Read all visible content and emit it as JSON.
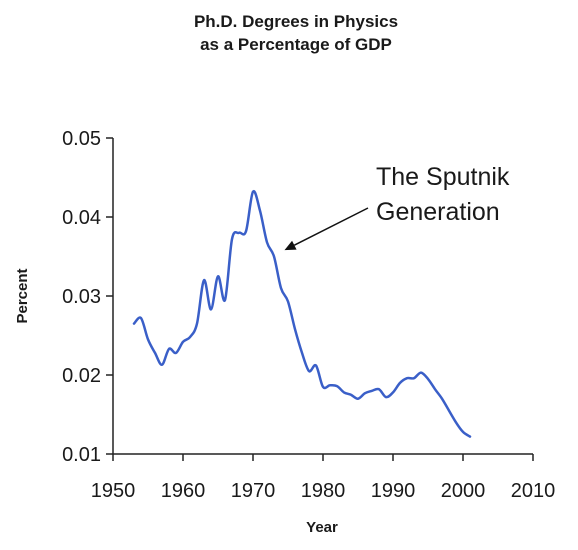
{
  "chart_data": {
    "type": "line",
    "title": [
      "Ph.D. Degrees in Physics",
      "as a Percentage of GDP"
    ],
    "xlabel": "Year",
    "ylabel": "Percent",
    "xlim": [
      1950,
      2010
    ],
    "ylim": [
      0.01,
      0.05
    ],
    "xticks": [
      1950,
      1960,
      1970,
      1980,
      1990,
      2000,
      2010
    ],
    "yticks": [
      0.01,
      0.02,
      0.03,
      0.04,
      0.05
    ],
    "ytick_labels": [
      "0.01",
      "0.02",
      "0.03",
      "0.04",
      "0.05"
    ],
    "grid": false,
    "line_color": "#3a5fc8",
    "series": [
      {
        "x": [
          1953,
          1954,
          1955,
          1956,
          1957,
          1958,
          1959,
          1960,
          1961,
          1962,
          1963,
          1964,
          1965,
          1966,
          1967,
          1968,
          1969,
          1970,
          1971,
          1972,
          1973,
          1974,
          1975,
          1976,
          1977,
          1978,
          1979,
          1980,
          1981,
          1982,
          1983,
          1984,
          1985,
          1986,
          1987,
          1988,
          1989,
          1990,
          1991,
          1992,
          1993,
          1994,
          1995,
          1996,
          1997,
          1998,
          1999,
          2000,
          2001
        ],
        "values": [
          0.0265,
          0.0272,
          0.0245,
          0.0228,
          0.0213,
          0.0233,
          0.0228,
          0.0242,
          0.0248,
          0.0265,
          0.032,
          0.0283,
          0.0325,
          0.0295,
          0.0372,
          0.038,
          0.0382,
          0.0432,
          0.0408,
          0.0368,
          0.035,
          0.031,
          0.0293,
          0.0258,
          0.0228,
          0.0205,
          0.0212,
          0.0185,
          0.0187,
          0.0186,
          0.0178,
          0.0175,
          0.017,
          0.0177,
          0.018,
          0.0182,
          0.0172,
          0.0178,
          0.019,
          0.0196,
          0.0196,
          0.0203,
          0.0195,
          0.0182,
          0.017,
          0.0155,
          0.014,
          0.0128,
          0.0122
        ]
      }
    ],
    "annotations": [
      {
        "text": [
          "The Sputnik",
          "Generation"
        ],
        "arrow_to": {
          "x": 1974.5,
          "y": 0.0358
        }
      }
    ]
  }
}
